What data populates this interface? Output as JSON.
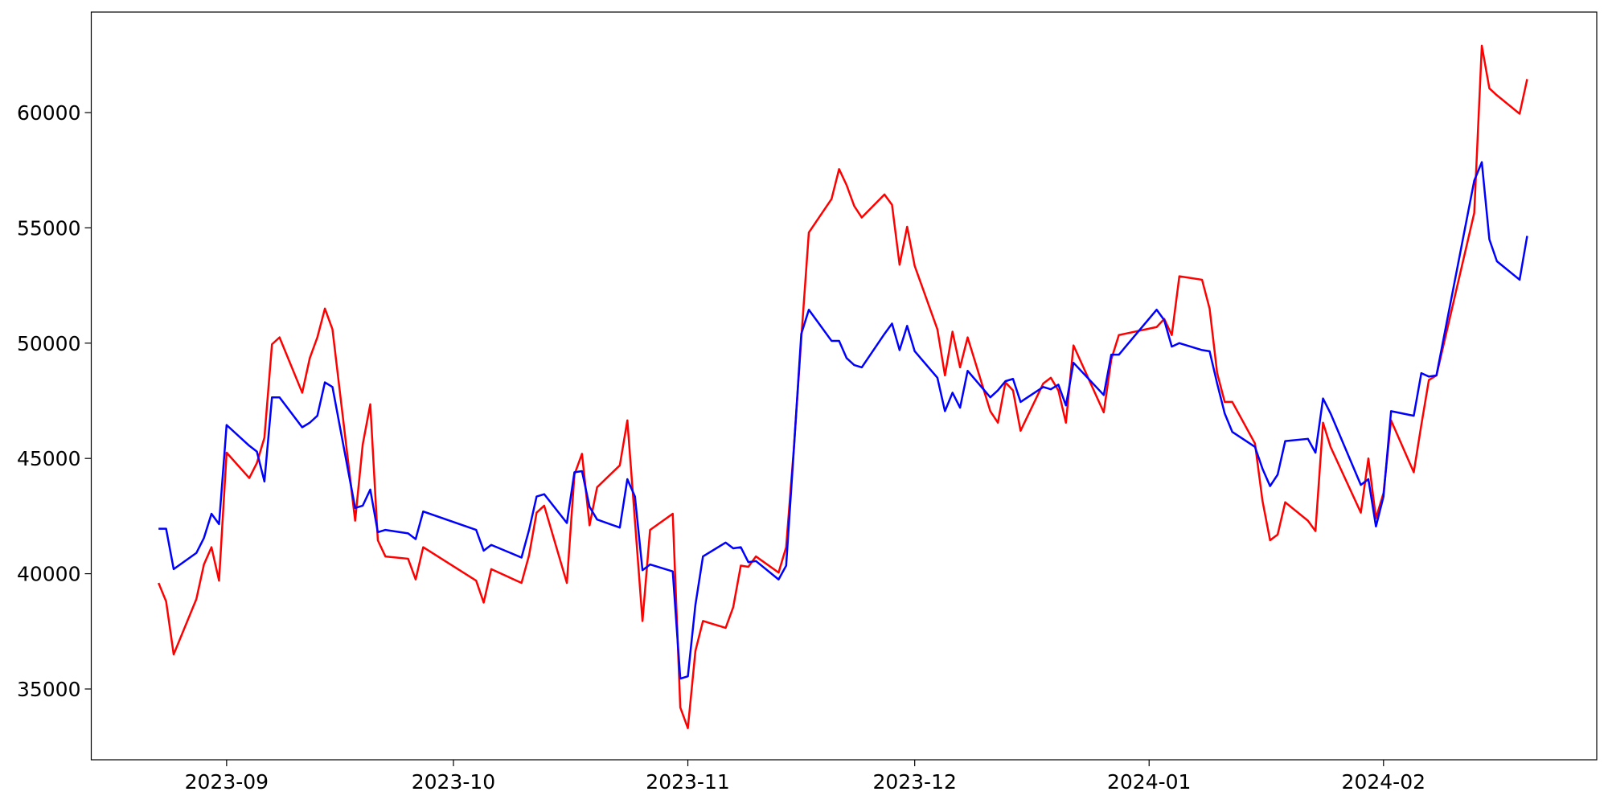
{
  "chart_data": {
    "type": "line",
    "x": [
      19592,
      19593,
      19594,
      19597,
      19598,
      19599,
      19600,
      19601,
      19604,
      19605,
      19606,
      19607,
      19608,
      19611,
      19612,
      19613,
      19614,
      19615,
      19618,
      19619,
      19620,
      19621,
      19622,
      19625,
      19626,
      19627,
      19634,
      19635,
      19636,
      19640,
      19641,
      19642,
      19643,
      19646,
      19647,
      19648,
      19649,
      19650,
      19653,
      19654,
      19655,
      19656,
      19657,
      19660,
      19661,
      19662,
      19663,
      19664,
      19667,
      19668,
      19669,
      19670,
      19671,
      19674,
      19675,
      19676,
      19677,
      19678,
      19681,
      19682,
      19683,
      19684,
      19685,
      19688,
      19689,
      19690,
      19691,
      19692,
      19695,
      19696,
      19697,
      19698,
      19699,
      19702,
      19703,
      19704,
      19705,
      19706,
      19709,
      19710,
      19711,
      19712,
      19713,
      19717,
      19718,
      19719,
      19724,
      19725,
      19726,
      19727,
      19730,
      19731,
      19732,
      19733,
      19734,
      19737,
      19738,
      19739,
      19740,
      19741,
      19744,
      19745,
      19746,
      19747,
      19751,
      19752,
      19753,
      19754,
      19755,
      19758,
      19759,
      19760,
      19761,
      19766,
      19767,
      19768,
      19769,
      19772,
      19773
    ],
    "series": [
      {
        "color": "#ff0000",
        "values": [
          39600,
          38800,
          36500,
          38900,
          40400,
          41150,
          39700,
          45250,
          44150,
          44800,
          45900,
          49950,
          50250,
          47850,
          49350,
          50250,
          51500,
          50600,
          42300,
          45600,
          47350,
          41450,
          40750,
          40650,
          39750,
          41150,
          39700,
          38750,
          40200,
          39600,
          40800,
          42650,
          42950,
          39600,
          44300,
          45200,
          42100,
          43750,
          44700,
          46650,
          42300,
          37950,
          41900,
          42600,
          34200,
          33300,
          36650,
          37950,
          37650,
          38550,
          40350,
          40300,
          40750,
          40050,
          41150,
          45350,
          50200,
          54800,
          56250,
          57550,
          56850,
          55950,
          55450,
          56450,
          56000,
          53400,
          55050,
          53350,
          50600,
          48600,
          50500,
          48950,
          50250,
          47050,
          46550,
          48300,
          47950,
          46200,
          48250,
          48500,
          47950,
          46550,
          49900,
          47000,
          49300,
          50350,
          50700,
          51050,
          50350,
          52900,
          52750,
          51500,
          48700,
          47450,
          47450,
          45650,
          43150,
          41450,
          41700,
          43100,
          42300,
          41850,
          46550,
          45500,
          42650,
          45000,
          42400,
          43500,
          46650,
          44400,
          46450,
          48400,
          48600,
          55650,
          62900,
          61050,
          60750,
          59950,
          61450
        ]
      },
      {
        "color": "#0000ff",
        "values": [
          41950,
          41950,
          40200,
          40900,
          41550,
          42600,
          42150,
          46450,
          45550,
          45300,
          44000,
          47650,
          47650,
          46350,
          46550,
          46850,
          48300,
          48100,
          42850,
          42950,
          43650,
          41800,
          41900,
          41750,
          41500,
          42700,
          41900,
          41000,
          41250,
          40700,
          41900,
          43350,
          43450,
          42200,
          44400,
          44450,
          42900,
          42350,
          42000,
          44100,
          43350,
          40150,
          40400,
          40100,
          35450,
          35550,
          38650,
          40750,
          41350,
          41100,
          41150,
          40500,
          40550,
          39750,
          40350,
          45300,
          50400,
          51450,
          50100,
          50100,
          49350,
          49050,
          48950,
          50400,
          50850,
          49700,
          50750,
          49650,
          48500,
          47050,
          47850,
          47200,
          48800,
          47650,
          47950,
          48350,
          48450,
          47450,
          48100,
          48000,
          48200,
          47300,
          49150,
          47750,
          49500,
          49500,
          51450,
          51000,
          49850,
          50000,
          49700,
          49650,
          48250,
          46950,
          46150,
          45500,
          44550,
          43800,
          44300,
          45750,
          45850,
          45250,
          47600,
          46950,
          43850,
          44100,
          42050,
          43350,
          47050,
          46850,
          48700,
          48550,
          48600,
          57050,
          57850,
          54500,
          53550,
          52750,
          54650
        ]
      }
    ],
    "xlim": [
      19583.1,
      19782.2
    ],
    "xticks": [
      {
        "value": 19601,
        "label": "2023-09"
      },
      {
        "value": 19631,
        "label": "2023-10"
      },
      {
        "value": 19662,
        "label": "2023-11"
      },
      {
        "value": 19692,
        "label": "2023-12"
      },
      {
        "value": 19723,
        "label": "2024-01"
      },
      {
        "value": 19754,
        "label": "2024-02"
      }
    ],
    "ylim": [
      31930,
      64360
    ],
    "yticks": [
      35000,
      40000,
      45000,
      50000,
      55000,
      60000
    ],
    "grid": false
  }
}
